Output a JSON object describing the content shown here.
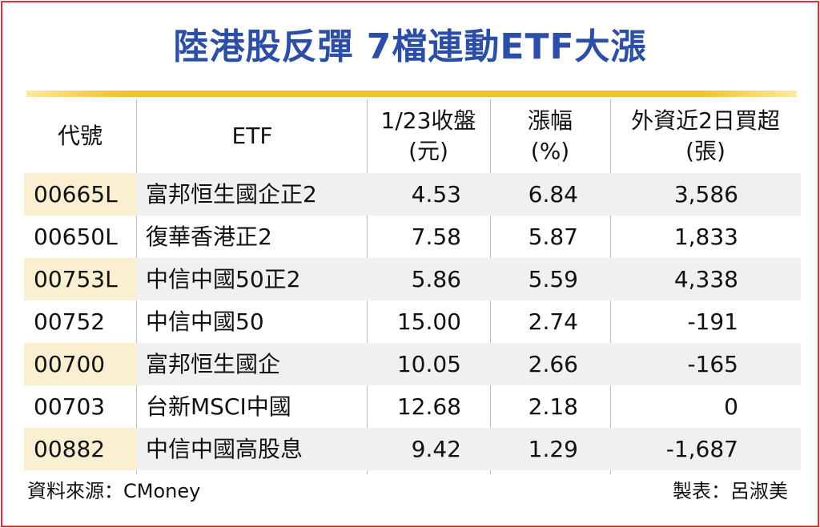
{
  "title": "陸港股反彈 7檔連動ETF大漲",
  "headers": {
    "code": "代號",
    "etf": "ETF",
    "close_line1": "1/23收盤",
    "close_line2": "(元)",
    "change_line1": "漲幅",
    "change_line2": "(%)",
    "buy_line1": "外資近2日買超",
    "buy_line2": "(張)"
  },
  "rows": [
    {
      "code": "00665L",
      "name": "富邦恒生國企正2",
      "close": "4.53",
      "change": "6.84",
      "net_buy": "3,586"
    },
    {
      "code": "00650L",
      "name": "復華香港正2",
      "close": "7.58",
      "change": "5.87",
      "net_buy": "1,833"
    },
    {
      "code": "00753L",
      "name": "中信中國50正2",
      "close": "5.86",
      "change": "5.59",
      "net_buy": "4,338"
    },
    {
      "code": "00752",
      "name": "中信中國50",
      "close": "15.00",
      "change": "2.74",
      "net_buy": "-191"
    },
    {
      "code": "00700",
      "name": "富邦恒生國企",
      "close": "10.05",
      "change": "2.66",
      "net_buy": "-165"
    },
    {
      "code": "00703",
      "name": "台新MSCI中國",
      "close": "12.68",
      "change": "2.18",
      "net_buy": "0"
    },
    {
      "code": "00882",
      "name": "中信中國高股息",
      "close": "9.42",
      "change": "1.29",
      "net_buy": "-1,687"
    }
  ],
  "footer": {
    "source": "資料來源：CMoney",
    "author": "製表：呂淑美"
  },
  "colors": {
    "border": "#e8303a",
    "title": "#2d4ea6",
    "rule": "#f2c232",
    "code_highlight": "#fbefd2",
    "row_shade": "#f0f0f0"
  }
}
